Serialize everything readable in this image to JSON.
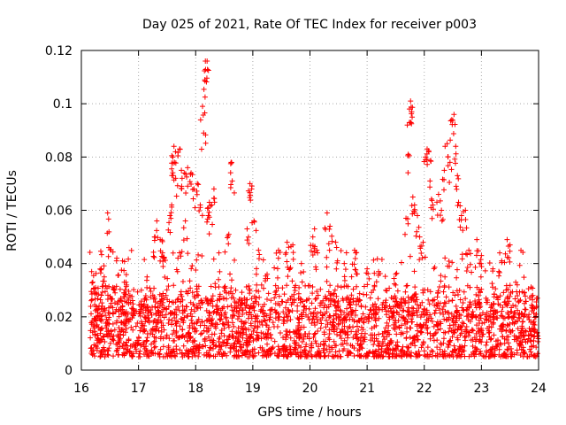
{
  "chart_data": {
    "type": "scatter",
    "title": "Day 025 of 2021, Rate Of TEC Index for receiver p003",
    "xlabel": "GPS time / hours",
    "ylabel": "ROTI / TECUs",
    "xlim": [
      16,
      24
    ],
    "ylim": [
      0,
      0.12
    ],
    "x_ticks": [
      "16",
      "17",
      "18",
      "19",
      "20",
      "21",
      "22",
      "23",
      "24"
    ],
    "y_ticks": [
      "0",
      "0.02",
      "0.04",
      "0.06",
      "0.08",
      "0.1",
      "0.12"
    ],
    "grid": true,
    "marker": "+",
    "marker_color": "#ff0000",
    "series": [
      {
        "name": "ROTI",
        "points": [
          [
            16.18,
            0.037
          ],
          [
            16.2,
            0.033
          ],
          [
            16.25,
            0.029
          ],
          [
            16.35,
            0.038
          ],
          [
            16.4,
            0.035
          ],
          [
            16.46,
            0.059
          ],
          [
            16.48,
            0.046
          ],
          [
            16.55,
            0.031
          ],
          [
            16.62,
            0.042
          ],
          [
            16.72,
            0.041
          ],
          [
            16.78,
            0.033
          ],
          [
            16.85,
            0.028
          ],
          [
            17.05,
            0.03
          ],
          [
            17.15,
            0.035
          ],
          [
            17.28,
            0.05
          ],
          [
            17.32,
            0.056
          ],
          [
            17.38,
            0.049
          ],
          [
            17.42,
            0.044
          ],
          [
            17.45,
            0.042
          ],
          [
            17.55,
            0.058
          ],
          [
            17.58,
            0.062
          ],
          [
            17.6,
            0.08
          ],
          [
            17.62,
            0.084
          ],
          [
            17.63,
            0.078
          ],
          [
            17.65,
            0.072
          ],
          [
            17.72,
            0.083
          ],
          [
            17.75,
            0.075
          ],
          [
            17.8,
            0.074
          ],
          [
            17.82,
            0.056
          ],
          [
            17.86,
            0.076
          ],
          [
            17.92,
            0.074
          ],
          [
            17.97,
            0.068
          ],
          [
            18.03,
            0.07
          ],
          [
            18.08,
            0.062
          ],
          [
            18.12,
            0.099
          ],
          [
            18.14,
            0.089
          ],
          [
            18.16,
            0.109
          ],
          [
            18.17,
            0.116
          ],
          [
            18.2,
            0.116
          ],
          [
            18.22,
            0.058
          ],
          [
            18.24,
            0.063
          ],
          [
            18.28,
            0.062
          ],
          [
            18.32,
            0.068
          ],
          [
            18.4,
            0.034
          ],
          [
            18.5,
            0.031
          ],
          [
            18.58,
            0.051
          ],
          [
            18.62,
            0.078
          ],
          [
            18.64,
            0.071
          ],
          [
            18.7,
            0.03
          ],
          [
            18.9,
            0.053
          ],
          [
            18.95,
            0.07
          ],
          [
            18.98,
            0.068
          ],
          [
            19.02,
            0.056
          ],
          [
            19.1,
            0.045
          ],
          [
            19.25,
            0.036
          ],
          [
            19.45,
            0.045
          ],
          [
            19.6,
            0.048
          ],
          [
            19.65,
            0.038
          ],
          [
            19.7,
            0.047
          ],
          [
            19.85,
            0.04
          ],
          [
            20.05,
            0.05
          ],
          [
            20.08,
            0.053
          ],
          [
            20.12,
            0.045
          ],
          [
            20.3,
            0.059
          ],
          [
            20.35,
            0.054
          ],
          [
            20.45,
            0.048
          ],
          [
            20.6,
            0.04
          ],
          [
            20.78,
            0.045
          ],
          [
            20.8,
            0.044
          ],
          [
            21.0,
            0.038
          ],
          [
            21.2,
            0.037
          ],
          [
            21.5,
            0.036
          ],
          [
            21.68,
            0.057
          ],
          [
            21.72,
            0.081
          ],
          [
            21.74,
            0.098
          ],
          [
            21.76,
            0.101
          ],
          [
            21.78,
            0.097
          ],
          [
            21.8,
            0.065
          ],
          [
            21.83,
            0.062
          ],
          [
            21.88,
            0.058
          ],
          [
            21.92,
            0.05
          ],
          [
            21.98,
            0.048
          ],
          [
            22.02,
            0.08
          ],
          [
            22.05,
            0.083
          ],
          [
            22.08,
            0.082
          ],
          [
            22.1,
            0.071
          ],
          [
            22.15,
            0.062
          ],
          [
            22.25,
            0.066
          ],
          [
            22.3,
            0.06
          ],
          [
            22.35,
            0.075
          ],
          [
            22.4,
            0.085
          ],
          [
            22.45,
            0.078
          ],
          [
            22.48,
            0.094
          ],
          [
            22.52,
            0.096
          ],
          [
            22.55,
            0.084
          ],
          [
            22.58,
            0.073
          ],
          [
            22.6,
            0.063
          ],
          [
            22.65,
            0.058
          ],
          [
            22.72,
            0.06
          ],
          [
            22.78,
            0.045
          ],
          [
            22.92,
            0.049
          ],
          [
            23.0,
            0.043
          ],
          [
            23.2,
            0.038
          ],
          [
            23.32,
            0.044
          ],
          [
            23.45,
            0.049
          ],
          [
            23.5,
            0.047
          ],
          [
            23.6,
            0.033
          ],
          [
            23.75,
            0.029
          ],
          [
            23.9,
            0.028
          ],
          [
            23.98,
            0.027
          ]
        ]
      }
    ]
  }
}
